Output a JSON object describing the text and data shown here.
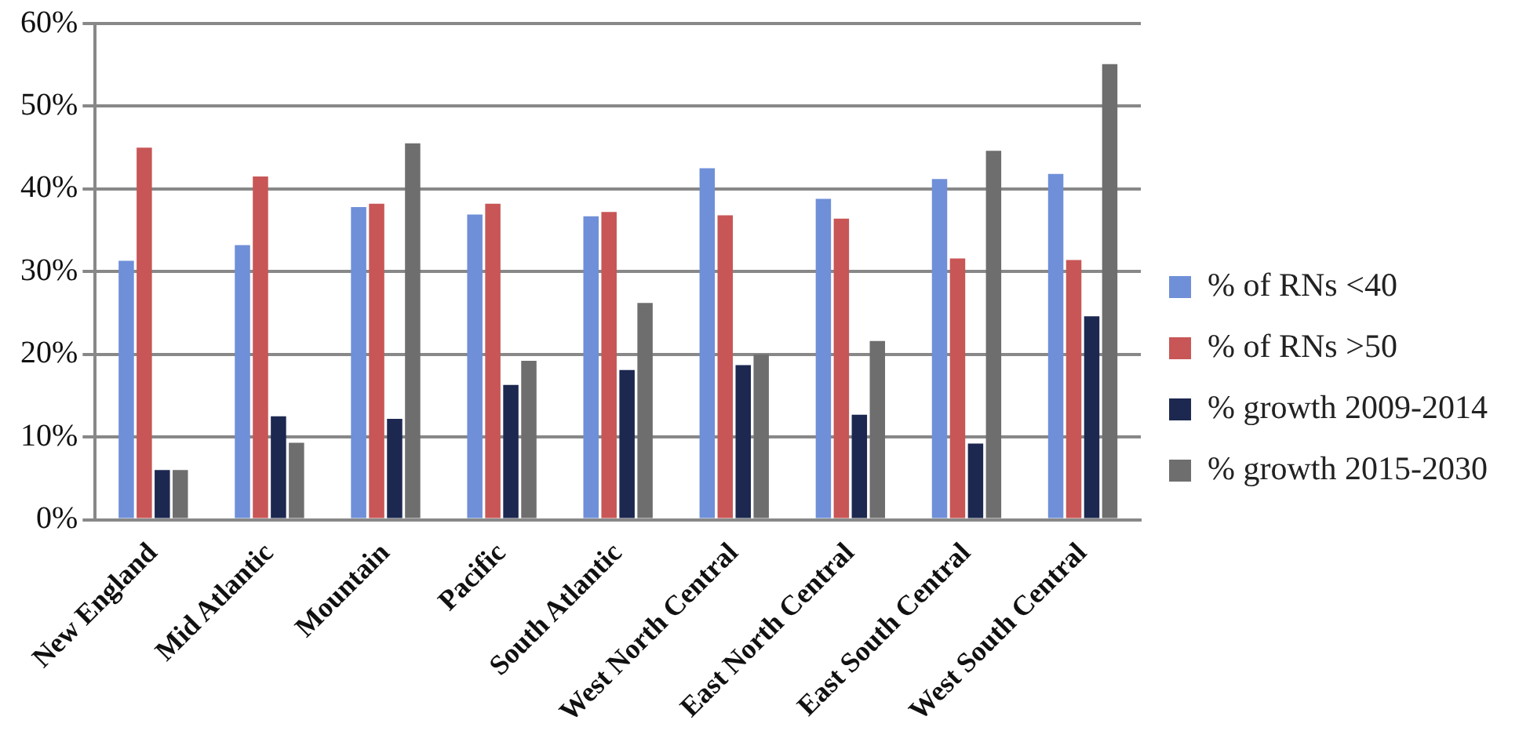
{
  "chart_data": {
    "type": "bar",
    "categories": [
      "New England",
      "Mid Atlantic",
      "Mountain",
      "Pacific",
      "South Atlantic",
      "West North Central",
      "East North Central",
      "East South Central",
      "West South Central"
    ],
    "series": [
      {
        "name": "% of RNs <40",
        "color": "#6f8fd8",
        "values": [
          31.3,
          33.2,
          37.8,
          36.9,
          36.7,
          42.5,
          38.8,
          41.2,
          41.8
        ]
      },
      {
        "name": "% of RNs >50",
        "color": "#c85656",
        "values": [
          45,
          41.5,
          38.2,
          38.2,
          37.2,
          36.8,
          36.4,
          31.6,
          31.4
        ]
      },
      {
        "name": "% growth 2009-2014",
        "color": "#1c2850",
        "values": [
          6,
          12.5,
          12.2,
          16.3,
          18.1,
          18.7,
          12.7,
          9.2,
          24.6
        ]
      },
      {
        "name": "% growth 2015-2030",
        "color": "#6e6e6e",
        "values": [
          6,
          9.3,
          45.5,
          19.2,
          26.2,
          20,
          21.6,
          44.6,
          55.1
        ]
      }
    ],
    "ylim": [
      0,
      60
    ],
    "yticks": [
      {
        "value": 0,
        "label": "0%"
      },
      {
        "value": 10,
        "label": "10%"
      },
      {
        "value": 20,
        "label": "20%"
      },
      {
        "value": 30,
        "label": "30%"
      },
      {
        "value": 40,
        "label": "40%"
      },
      {
        "value": 50,
        "label": "50%"
      },
      {
        "value": 60,
        "label": "60%"
      }
    ],
    "grid": "y",
    "legend": "right"
  }
}
